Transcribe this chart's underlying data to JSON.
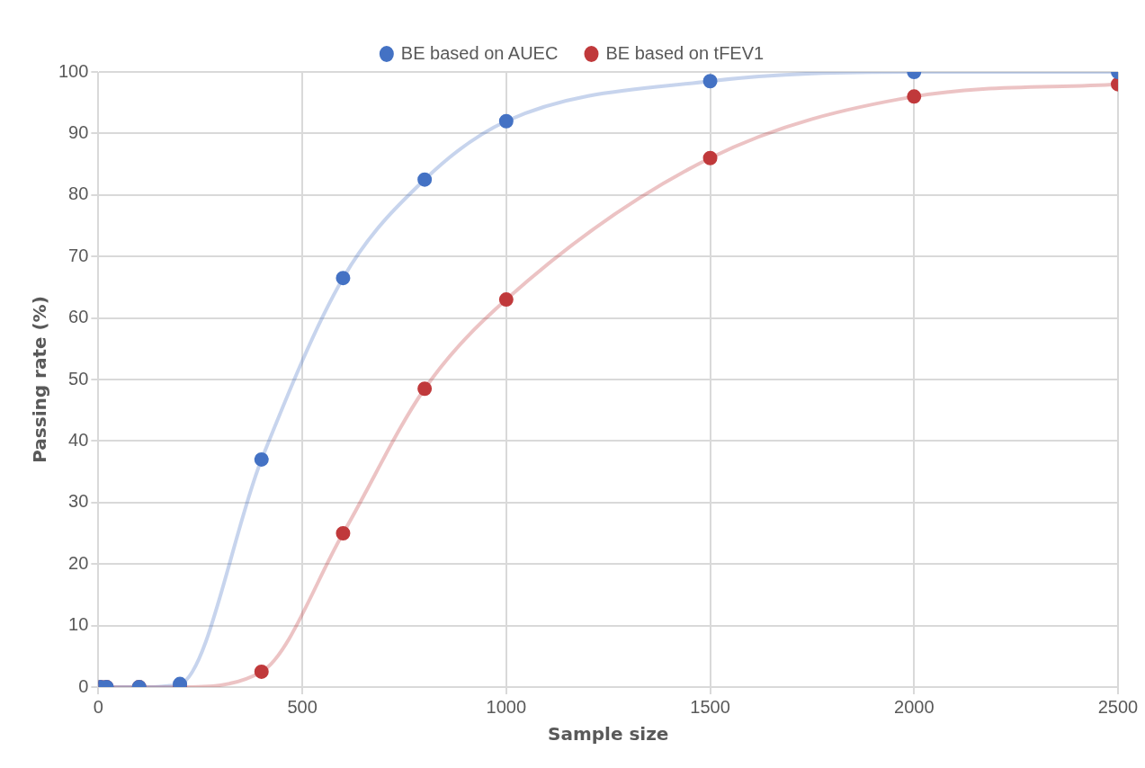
{
  "chart_data": {
    "type": "line",
    "xlabel": "Sample size",
    "ylabel": "Passing rate (%)",
    "x": [
      5,
      20,
      100,
      200,
      400,
      600,
      800,
      1000,
      1500,
      2000,
      2500
    ],
    "series": [
      {
        "name": "BE based on AUEC",
        "color": "#4472c4",
        "values": [
          0,
          0,
          0,
          0.5,
          37,
          66.5,
          82.5,
          92,
          98.5,
          100,
          100
        ]
      },
      {
        "name": "BE based on tFEV1",
        "color": "#c0393b",
        "values": [
          0,
          0,
          0,
          0,
          2.5,
          25,
          48.5,
          63,
          86,
          96,
          98
        ]
      }
    ],
    "xlim": [
      0,
      2500
    ],
    "xticks": [
      0,
      500,
      1000,
      1500,
      2000,
      2500
    ],
    "ylim": [
      0,
      100
    ],
    "yticks": [
      0,
      10,
      20,
      30,
      40,
      50,
      60,
      70,
      80,
      90,
      100
    ],
    "grid": true,
    "legend": "top",
    "marker": "circle",
    "line_style": "solid"
  }
}
